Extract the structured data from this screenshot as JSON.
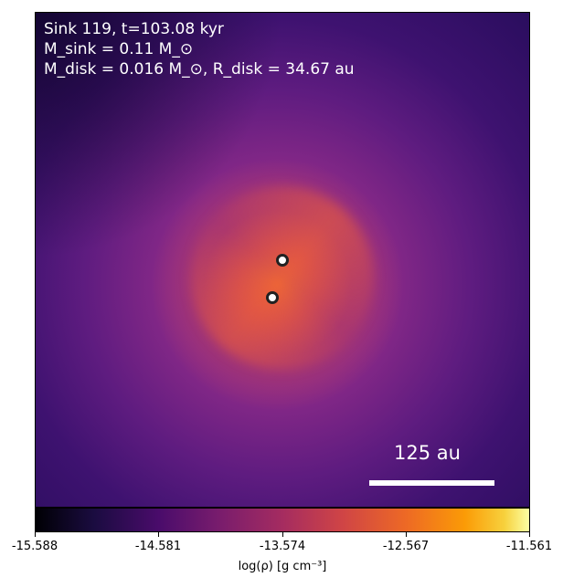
{
  "panel": {
    "line1": "Sink 119, t=103.08 kyr",
    "line2": "M_sink = 0.11 M_⊙",
    "line3": "M_disk = 0.016 M_⊙, R_disk = 34.67 au"
  },
  "scale_bar": {
    "label": "125 au"
  },
  "colorbar": {
    "label": "log(ρ) [g cm⁻³]",
    "ticks": [
      "-15.588",
      "-14.581",
      "-13.574",
      "-12.567",
      "-11.561"
    ]
  },
  "colors": {
    "background": "#ffffff",
    "text_on_map": "#ffffff",
    "sink_fill": "#ffffff",
    "sink_edge": "#222222",
    "colormap": "inferno"
  },
  "icons": {
    "sink_marker": "circle-marker-icon"
  }
}
